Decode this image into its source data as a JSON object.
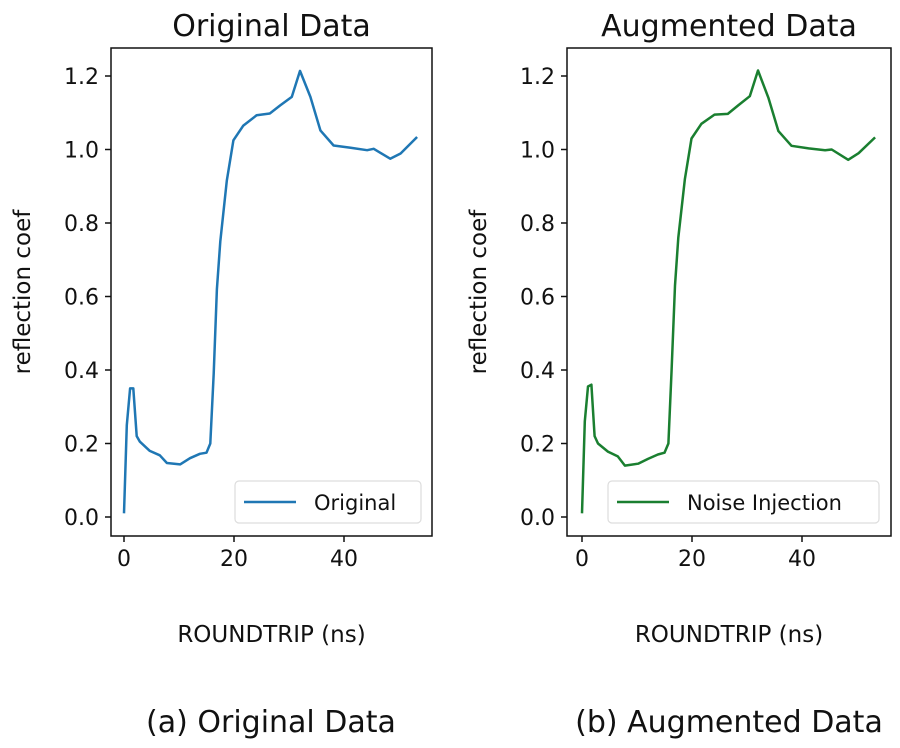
{
  "chart_data": [
    {
      "type": "line",
      "title": "Original Data",
      "caption": "(a) Original Data",
      "xlabel": "ROUNDTRIP (ns)",
      "ylabel": "reflection coef",
      "xticks": [
        0,
        20,
        40
      ],
      "yticks": [
        0.0,
        0.2,
        0.4,
        0.6,
        0.8,
        1.0,
        1.2
      ],
      "ytick_labels": [
        "0.0",
        "0.2",
        "0.4",
        "0.6",
        "0.8",
        "1.0",
        "1.2"
      ],
      "legend_placement": "lower-right",
      "grid": false,
      "series": [
        {
          "name": "Original",
          "color": "#1f77b4",
          "x": [
            0,
            0.5,
            1.1,
            1.7,
            2.3,
            2.9,
            4.7,
            6.5,
            7.8,
            10.2,
            12,
            13.8,
            15,
            15.7,
            16.3,
            16.9,
            17.5,
            18.7,
            19.9,
            21.7,
            24.1,
            26.5,
            28.4,
            30.5,
            32,
            33.9,
            35.7,
            38.1,
            41.2,
            44.2,
            45.4,
            48.4,
            50.3,
            53.3
          ],
          "y": [
            0.01,
            0.25,
            0.35,
            0.35,
            0.22,
            0.205,
            0.18,
            0.168,
            0.147,
            0.143,
            0.16,
            0.172,
            0.175,
            0.2,
            0.39,
            0.62,
            0.75,
            0.915,
            1.025,
            1.065,
            1.093,
            1.098,
            1.12,
            1.143,
            1.214,
            1.143,
            1.052,
            1.011,
            1.005,
            0.998,
            1.002,
            0.975,
            0.989,
            1.034
          ]
        }
      ]
    },
    {
      "type": "line",
      "title": "Augmented Data",
      "caption": "(b) Augmented Data",
      "xlabel": "ROUNDTRIP (ns)",
      "ylabel": "reflection coef",
      "xticks": [
        0,
        20,
        40
      ],
      "yticks": [
        0.0,
        0.2,
        0.4,
        0.6,
        0.8,
        1.0,
        1.2
      ],
      "ytick_labels": [
        "0.0",
        "0.2",
        "0.4",
        "0.6",
        "0.8",
        "1.0",
        "1.2"
      ],
      "legend_placement": "lower-right",
      "grid": false,
      "series": [
        {
          "name": "Noise Injection",
          "color": "#1a7f30",
          "x": [
            0,
            0.5,
            1.1,
            1.7,
            2.3,
            2.9,
            4.7,
            6.5,
            7.8,
            10.2,
            12,
            13.8,
            15,
            15.7,
            16.3,
            16.9,
            17.5,
            18.7,
            19.9,
            21.7,
            24.1,
            26.5,
            28.4,
            30.5,
            32,
            33.9,
            35.7,
            38.1,
            41.2,
            44.2,
            45.4,
            48.4,
            50.3,
            53.3
          ],
          "y": [
            0.01,
            0.26,
            0.355,
            0.36,
            0.22,
            0.2,
            0.178,
            0.165,
            0.14,
            0.145,
            0.158,
            0.17,
            0.175,
            0.2,
            0.4,
            0.63,
            0.76,
            0.92,
            1.03,
            1.07,
            1.095,
            1.097,
            1.12,
            1.145,
            1.215,
            1.14,
            1.05,
            1.01,
            1.003,
            0.998,
            1.0,
            0.972,
            0.99,
            1.033
          ]
        }
      ]
    }
  ]
}
